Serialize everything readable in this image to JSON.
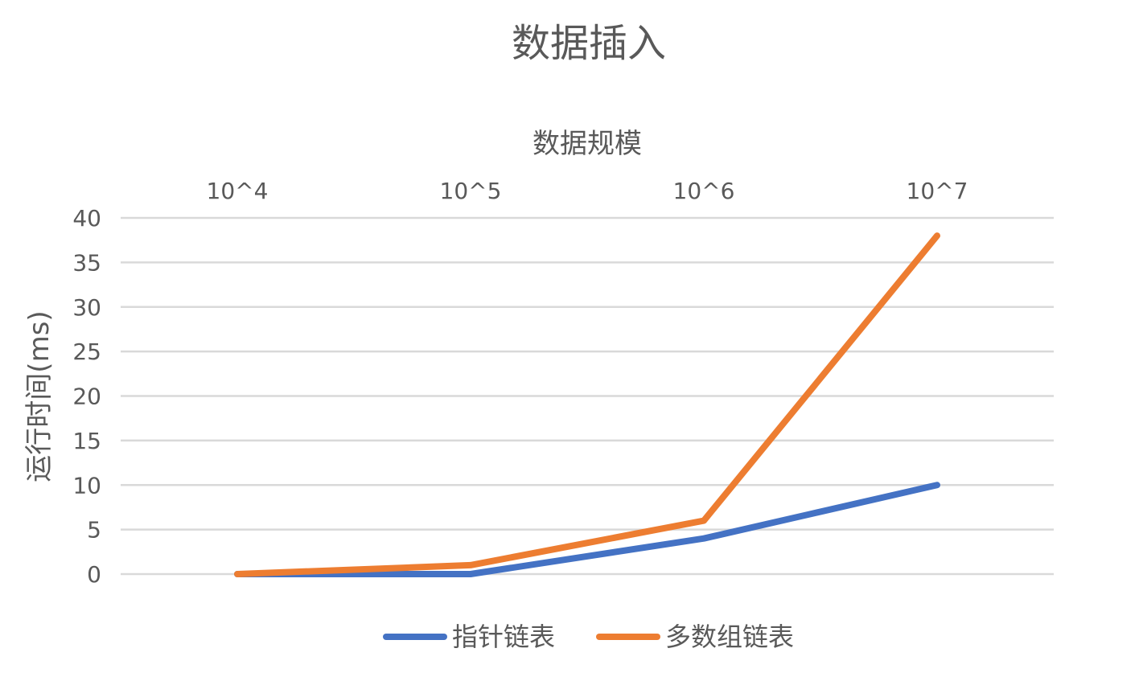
{
  "chart_data": {
    "type": "line",
    "title": "数据插入",
    "xlabel": "数据规模",
    "ylabel": "运行时间(ms)",
    "categories": [
      "10^4",
      "10^5",
      "10^6",
      "10^7"
    ],
    "y_ticks": [
      "0",
      "5",
      "10",
      "15",
      "20",
      "25",
      "30",
      "35",
      "40"
    ],
    "ylim": [
      0,
      40
    ],
    "y_step": 5,
    "x_axis_position": "top",
    "grid": true,
    "legend_position": "bottom",
    "series": [
      {
        "name": "指针链表",
        "values": [
          0,
          0,
          4,
          10
        ],
        "color": "#4472C4"
      },
      {
        "name": "多数组链表",
        "values": [
          0,
          1,
          6,
          38
        ],
        "color": "#ED7D31"
      }
    ],
    "colors": {
      "text": "#595959",
      "grid": "#d9d9d9"
    }
  }
}
